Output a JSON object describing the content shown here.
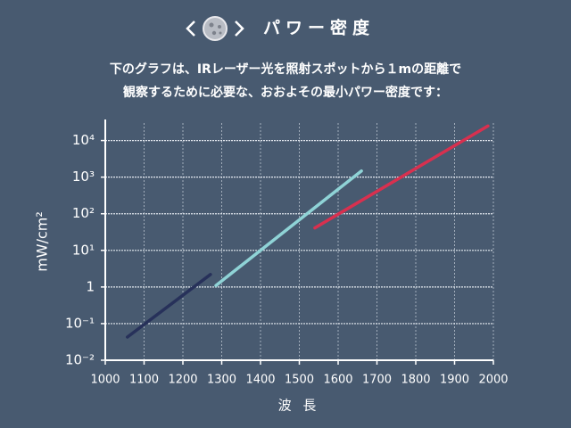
{
  "chart_data": {
    "type": "line",
    "title": "パワー密度",
    "subtitle": [
      "下のグラフは、IRレーザー光を照射スポットから１mの距離で",
      "観察するために必要な、おおよその最小パワー密度です："
    ],
    "x_label": "波 長",
    "y_label": "mW/cm²",
    "log_y": true,
    "grid": true,
    "xlim": [
      1000,
      2000
    ],
    "xticks": [
      1000,
      1100,
      1200,
      1300,
      1400,
      1500,
      1600,
      1700,
      1800,
      1900,
      2000
    ],
    "ylim": [
      0.01,
      30000
    ],
    "yticks": [
      {
        "value": 0.01,
        "label": "10⁻²"
      },
      {
        "value": 0.1,
        "label": "10⁻¹"
      },
      1,
      {
        "value": 10,
        "label": "10¹"
      },
      {
        "value": 100,
        "label": "10²"
      },
      {
        "value": 1000,
        "label": "10³"
      },
      {
        "value": 10000,
        "label": "10⁴"
      }
    ],
    "series": [
      {
        "color": "#27315a",
        "x": [
          1057,
          1271
        ],
        "values": [
          0.043,
          2.2
        ]
      },
      {
        "color": "#8fd3d6",
        "x": [
          1285,
          1660
        ],
        "values": [
          1.1,
          1480
        ]
      },
      {
        "color": "#d8304f",
        "x": [
          1540,
          1986
        ],
        "values": [
          41,
          25000
        ]
      }
    ]
  }
}
